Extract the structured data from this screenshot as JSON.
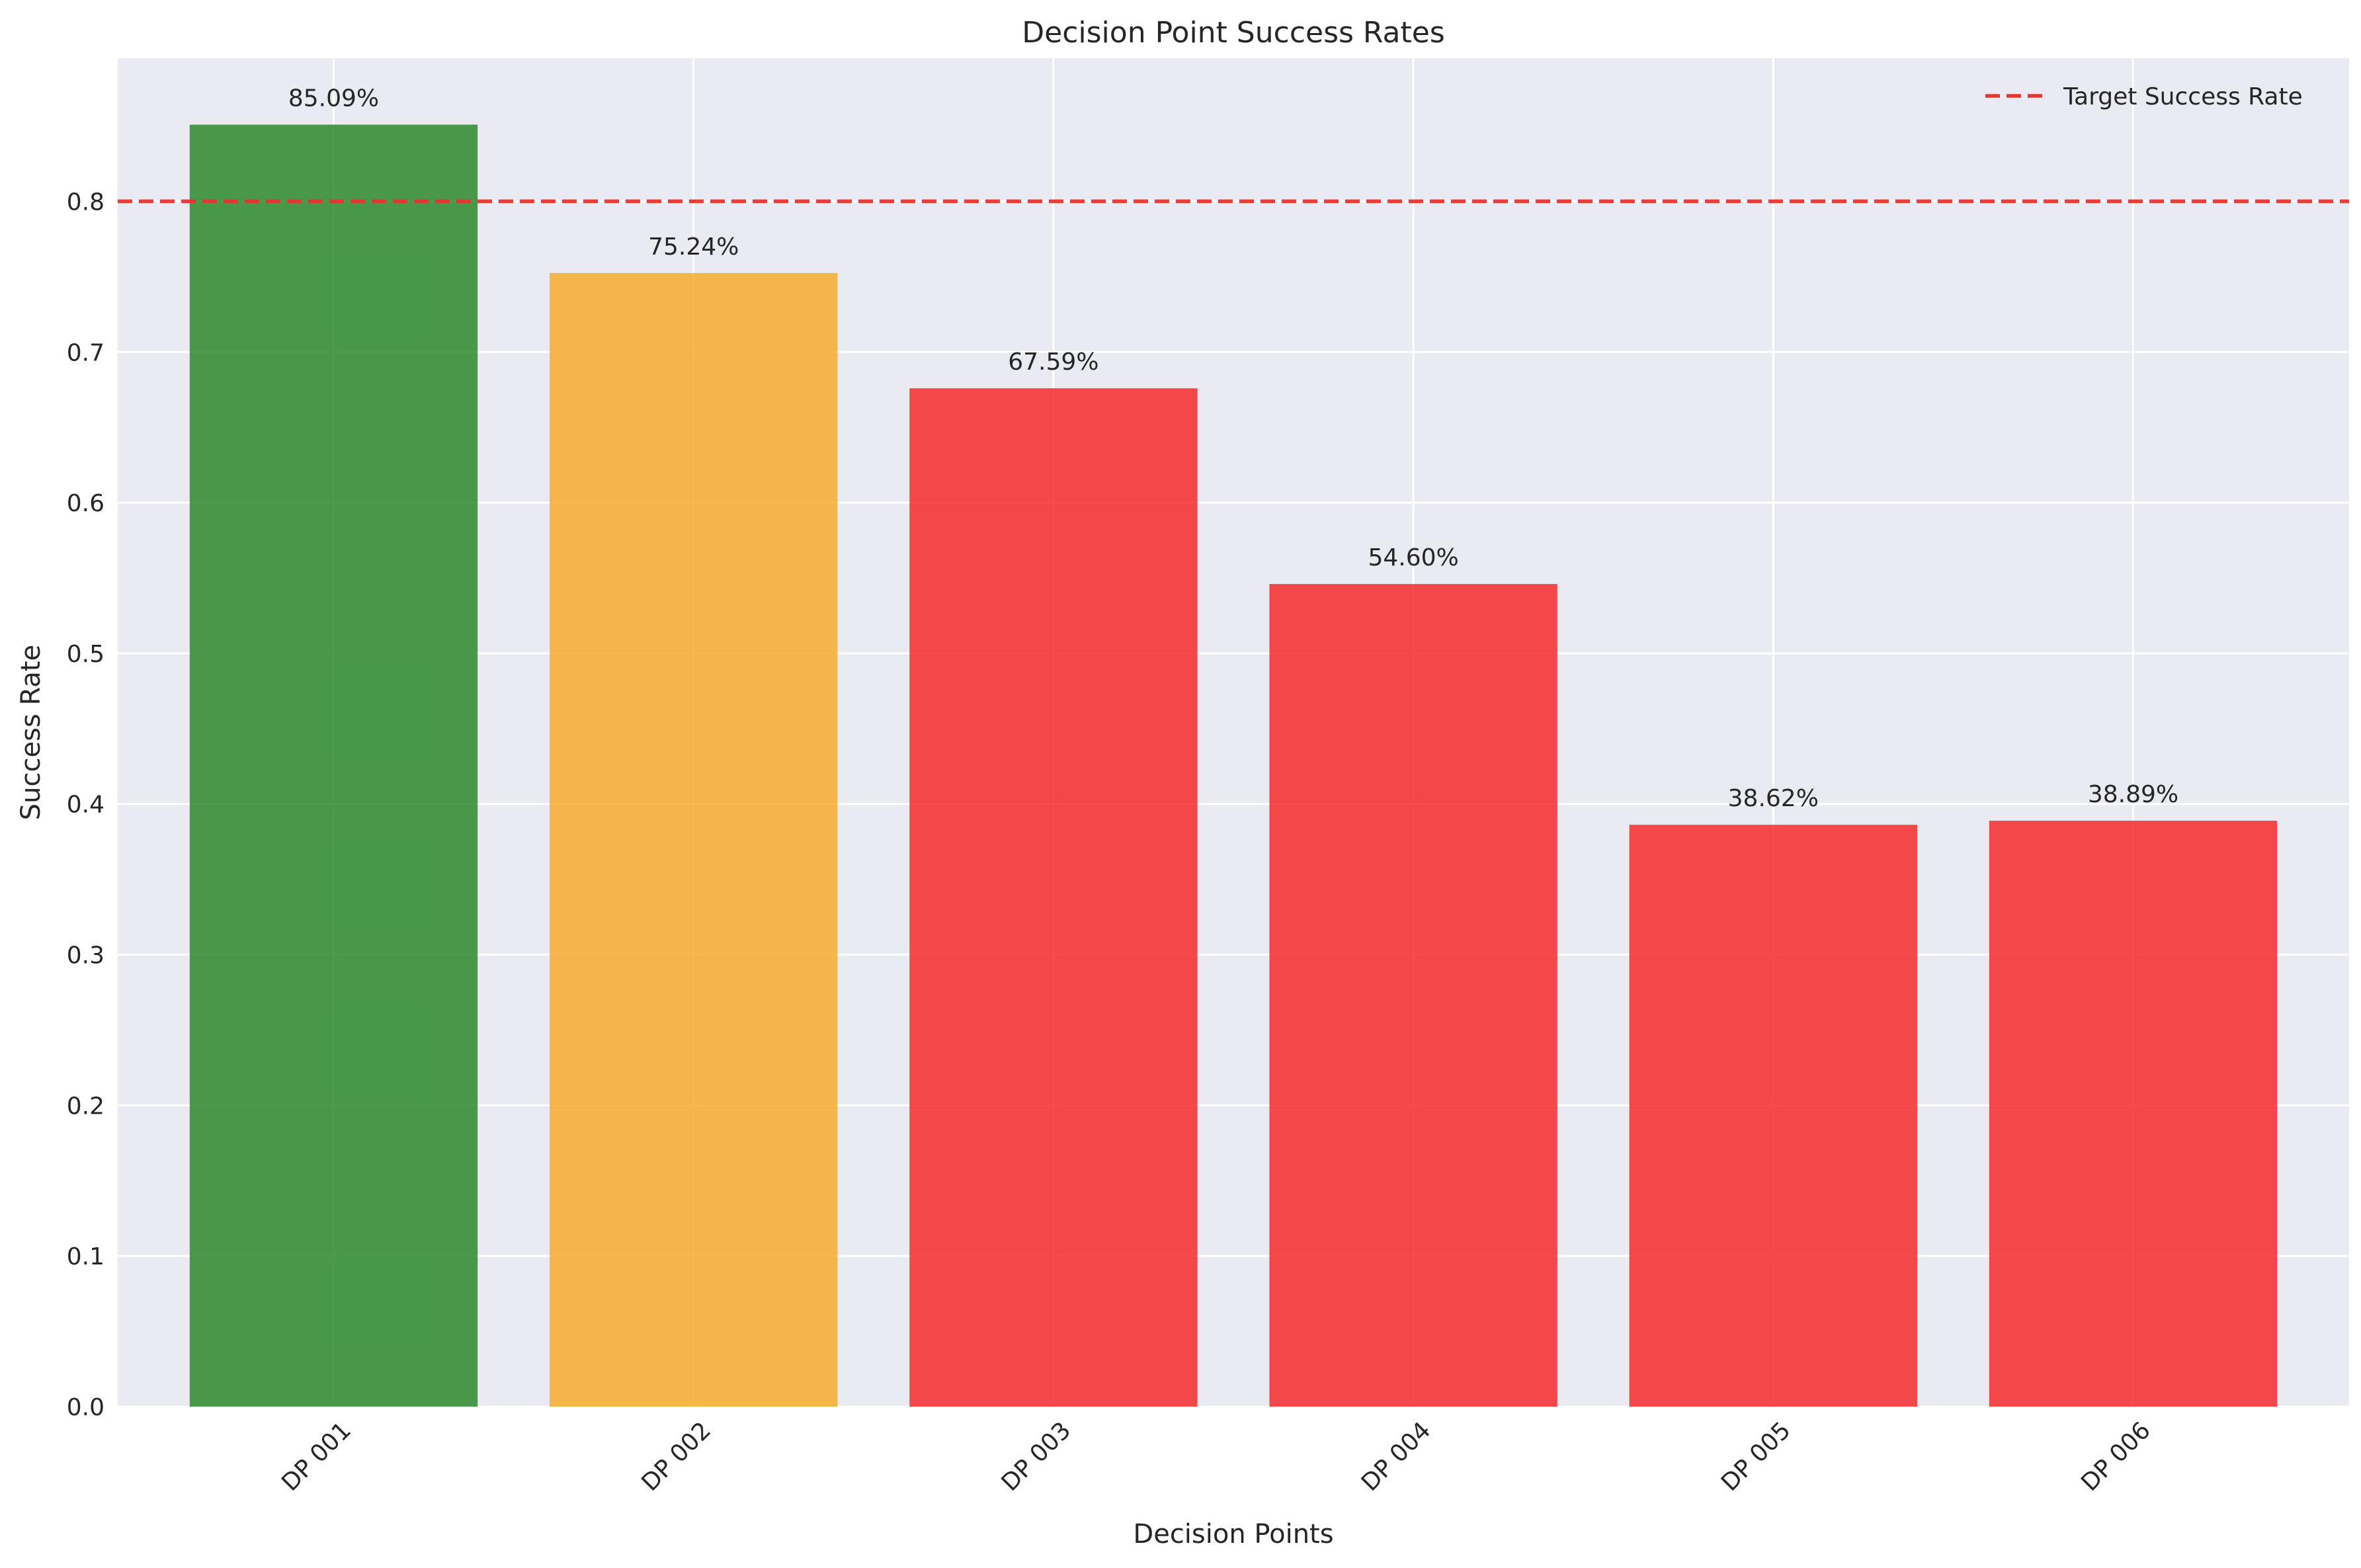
{
  "chart_data": {
    "type": "bar",
    "title": "Decision Point Success Rates",
    "xlabel": "Decision Points",
    "ylabel": "Success Rate",
    "categories": [
      "DP 001",
      "DP 002",
      "DP 003",
      "DP 004",
      "DP 005",
      "DP 006"
    ],
    "values": [
      0.8509,
      0.7524,
      0.6759,
      0.546,
      0.3862,
      0.3889
    ],
    "data_labels": [
      "85.09%",
      "75.24%",
      "67.59%",
      "54.60%",
      "38.62%",
      "38.89%"
    ],
    "bar_colors": [
      "#2e8b2e",
      "#f6ad30",
      "#f52d2d",
      "#f52d2d",
      "#f52d2d",
      "#f52d2d"
    ],
    "ylim": [
      0,
      0.895
    ],
    "yticks": [
      0.0,
      0.1,
      0.2,
      0.3,
      0.4,
      0.5,
      0.6,
      0.7,
      0.8
    ],
    "ytick_labels": [
      "0.0",
      "0.1",
      "0.2",
      "0.3",
      "0.4",
      "0.5",
      "0.6",
      "0.7",
      "0.8"
    ],
    "grid": true,
    "reference_line": {
      "name": "Target Success Rate",
      "value": 0.8,
      "style": "dashed",
      "color": "#e8332e"
    },
    "legend": {
      "placement": "top-right",
      "entries": [
        "Target Success Rate"
      ]
    },
    "background_color": "#eaeaf2"
  }
}
